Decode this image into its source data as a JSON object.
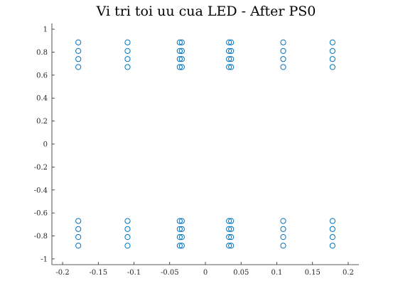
{
  "chart_data": {
    "type": "scatter",
    "title": "Vi tri toi uu cua LED - After PS0",
    "xlabel": "",
    "ylabel": "",
    "xlim": [
      -0.215,
      0.215
    ],
    "ylim": [
      -1.05,
      1.05
    ],
    "x_ticks": [
      -0.2,
      -0.15,
      -0.1,
      -0.05,
      0,
      0.05,
      0.1,
      0.15,
      0.2
    ],
    "x_tick_labels": [
      "-0.2",
      "-0.15",
      "-0.1",
      "-0.05",
      "0",
      "0.05",
      "0.1",
      "0.15",
      "0.2"
    ],
    "y_ticks": [
      1,
      0.8,
      0.6,
      0.4,
      0.2,
      0,
      -0.2,
      -0.4,
      -0.6,
      -0.8,
      -1
    ],
    "y_tick_labels": [
      "1",
      "0.8",
      "0.6",
      "0.4",
      "0.2",
      "0",
      "-0.2",
      "-0.4",
      "-0.6",
      "-0.8",
      "-1"
    ],
    "grid": false,
    "marker": "open-circle",
    "marker_color": "#0072BD",
    "series": [
      {
        "x": [
          -0.178,
          -0.178,
          -0.178,
          -0.178,
          -0.178,
          -0.178,
          -0.178,
          -0.178,
          -0.109,
          -0.109,
          -0.109,
          -0.109,
          -0.109,
          -0.109,
          -0.109,
          -0.109,
          -0.036,
          -0.036,
          -0.036,
          -0.036,
          -0.036,
          -0.036,
          -0.036,
          -0.036,
          -0.033,
          -0.033,
          -0.033,
          -0.033,
          -0.033,
          -0.033,
          -0.033,
          -0.033,
          0.033,
          0.033,
          0.033,
          0.033,
          0.033,
          0.033,
          0.033,
          0.033,
          0.036,
          0.036,
          0.036,
          0.036,
          0.036,
          0.036,
          0.036,
          0.036,
          0.109,
          0.109,
          0.109,
          0.109,
          0.109,
          0.109,
          0.109,
          0.109,
          0.178,
          0.178,
          0.178,
          0.178,
          0.178,
          0.178,
          0.178,
          0.178
        ],
        "y": [
          0.885,
          0.81,
          0.74,
          0.67,
          -0.67,
          -0.74,
          -0.81,
          -0.885,
          0.885,
          0.81,
          0.74,
          0.67,
          -0.67,
          -0.74,
          -0.81,
          -0.885,
          0.885,
          0.81,
          0.74,
          0.67,
          -0.67,
          -0.74,
          -0.81,
          -0.885,
          0.885,
          0.81,
          0.74,
          0.67,
          -0.67,
          -0.74,
          -0.81,
          -0.885,
          0.885,
          0.81,
          0.74,
          0.67,
          -0.67,
          -0.74,
          -0.81,
          -0.885,
          0.885,
          0.81,
          0.74,
          0.67,
          -0.67,
          -0.74,
          -0.81,
          -0.885,
          0.885,
          0.81,
          0.74,
          0.67,
          -0.67,
          -0.74,
          -0.81,
          -0.885,
          0.885,
          0.81,
          0.74,
          0.67,
          -0.67,
          -0.74,
          -0.81,
          -0.885
        ]
      }
    ]
  }
}
